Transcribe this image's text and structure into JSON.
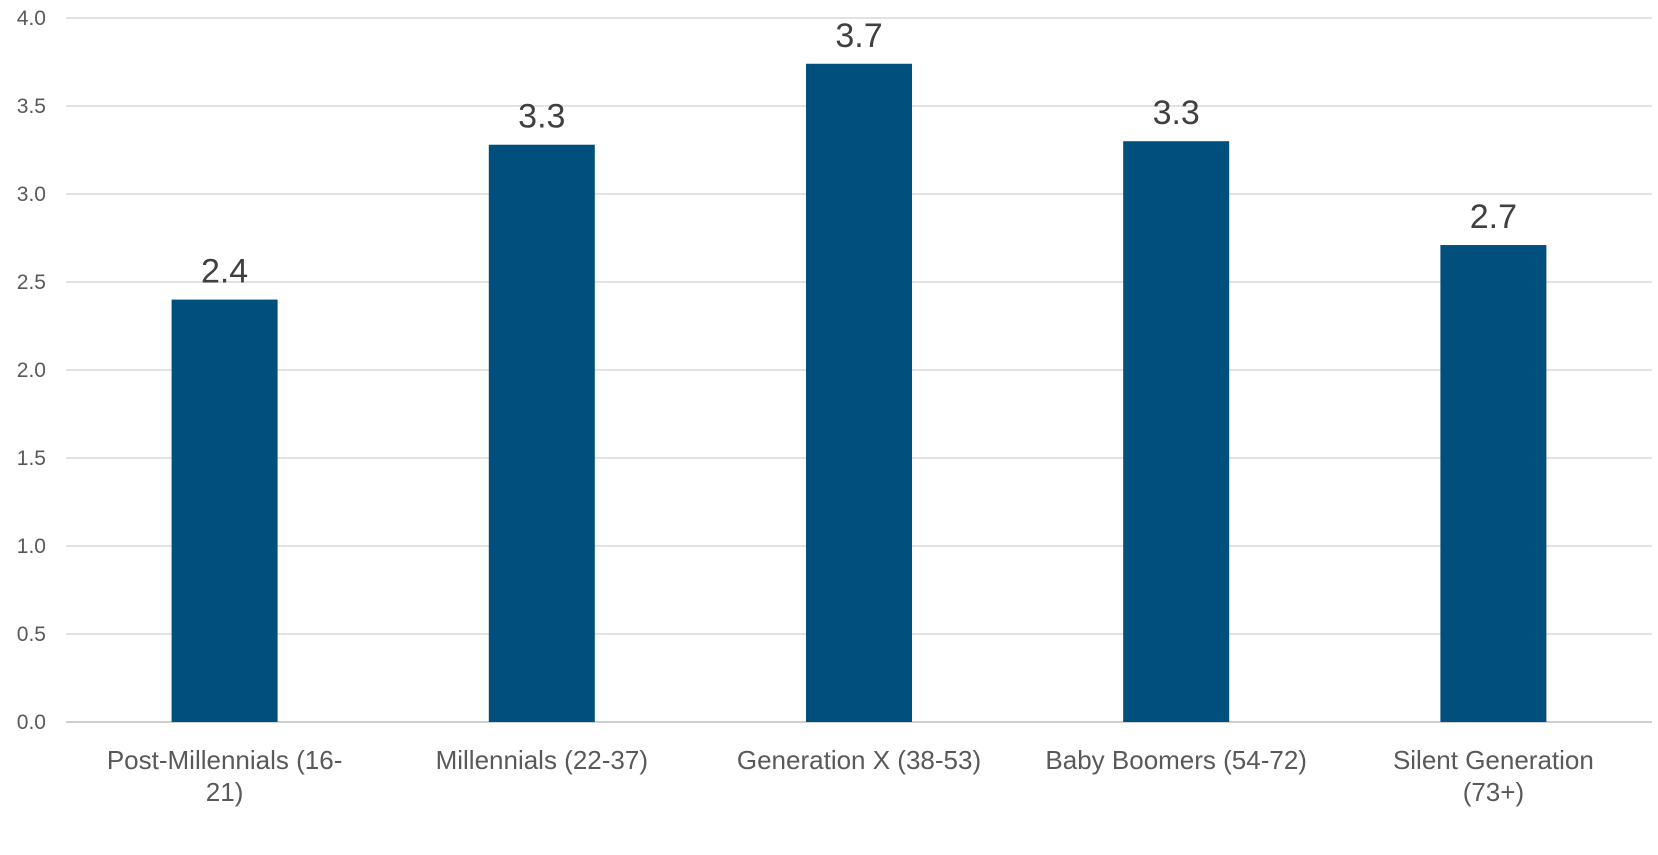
{
  "chart_data": {
    "type": "bar",
    "categories": [
      [
        "Post-Millennials (16-",
        "21)"
      ],
      [
        "Millennials (22-37)"
      ],
      [
        "Generation X (38-53)"
      ],
      [
        "Baby Boomers (54-72)"
      ],
      [
        "Silent Generation",
        "(73+)"
      ]
    ],
    "values": [
      2.4,
      3.28,
      3.74,
      3.3,
      2.71
    ],
    "data_labels": [
      "2.4",
      "3.3",
      "3.7",
      "3.3",
      "2.7"
    ],
    "y_ticks": [
      "0.0",
      "0.5",
      "1.0",
      "1.5",
      "2.0",
      "2.5",
      "3.0",
      "3.5",
      "4.0"
    ],
    "ylim": [
      0,
      4
    ],
    "grid": true,
    "bar_color": "#004f7c",
    "title": "",
    "xlabel": "",
    "ylabel": ""
  }
}
